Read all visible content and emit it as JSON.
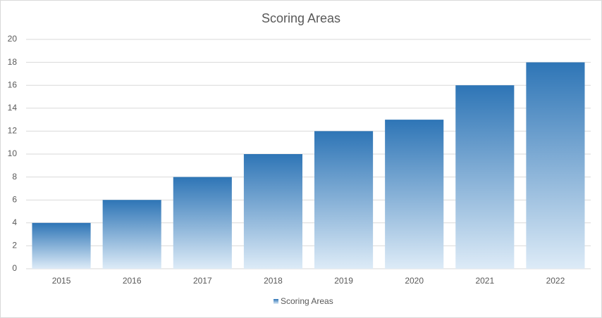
{
  "chart_data": {
    "type": "bar",
    "title": "Scoring Areas",
    "categories": [
      "2015",
      "2016",
      "2017",
      "2018",
      "2019",
      "2020",
      "2021",
      "2022"
    ],
    "series": [
      {
        "name": "Scoring Areas",
        "color": "#2e75b6",
        "values": [
          4,
          6,
          8,
          10,
          12,
          13,
          16,
          18
        ]
      }
    ],
    "ylim": [
      0,
      20
    ],
    "yticks": [
      0,
      2,
      4,
      6,
      8,
      10,
      12,
      14,
      16,
      18,
      20
    ],
    "grid": true,
    "legend": "bottom"
  }
}
